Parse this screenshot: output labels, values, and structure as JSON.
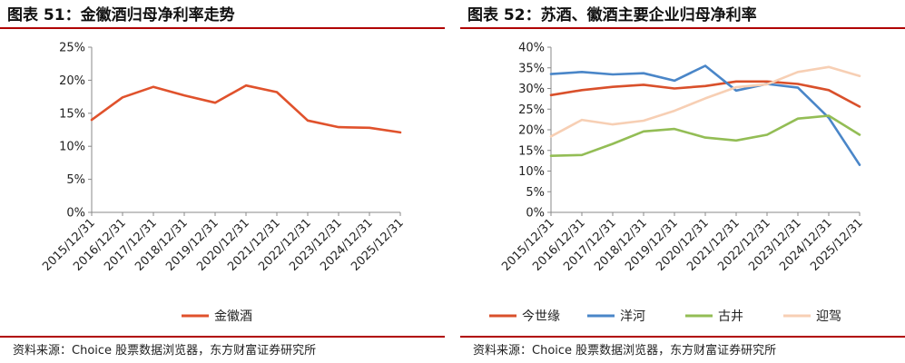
{
  "charts": [
    {
      "figure_title": "图表 51：金徽酒归母净利率走势",
      "source": "资料来源：Choice 股票数据浏览器，东方财富证券研究所",
      "legend_position": "bottom"
    },
    {
      "figure_title": "图表 52：苏酒、徽酒主要企业归母净利率",
      "source": "资料来源：Choice 股票数据浏览器，东方财富证券研究所",
      "legend_position": "bottom"
    }
  ],
  "chart_data": [
    {
      "type": "line",
      "title": "图表 51：金徽酒归母净利率走势",
      "xlabel": "",
      "ylabel": "",
      "x": [
        "2015/12/31",
        "2016/12/31",
        "2017/12/31",
        "2018/12/31",
        "2019/12/31",
        "2020/12/31",
        "2021/12/31",
        "2022/12/31",
        "2023/12/31",
        "2024/12/31",
        "2025/12/31"
      ],
      "ylim": [
        0,
        25
      ],
      "yticks": [
        "0%",
        "5%",
        "10%",
        "15%",
        "20%",
        "25%"
      ],
      "ytick_values": [
        0,
        5,
        10,
        15,
        20,
        25
      ],
      "grid": false,
      "series": [
        {
          "name": "金徽酒",
          "color": "#e0522c",
          "values": [
            14.0,
            17.4,
            19.0,
            17.7,
            16.6,
            19.2,
            18.2,
            13.9,
            12.9,
            12.8,
            12.1
          ]
        }
      ]
    },
    {
      "type": "line",
      "title": "图表 52：苏酒、徽酒主要企业归母净利率",
      "xlabel": "",
      "ylabel": "",
      "x": [
        "2015/12/31",
        "2016/12/31",
        "2017/12/31",
        "2018/12/31",
        "2019/12/31",
        "2020/12/31",
        "2021/12/31",
        "2022/12/31",
        "2023/12/31",
        "2024/12/31",
        "2025/12/31"
      ],
      "ylim": [
        0,
        40
      ],
      "yticks": [
        "0%",
        "5%",
        "10%",
        "15%",
        "20%",
        "25%",
        "30%",
        "35%",
        "40%"
      ],
      "ytick_values": [
        0,
        5,
        10,
        15,
        20,
        25,
        30,
        35,
        40
      ],
      "grid": false,
      "series": [
        {
          "name": "今世缘",
          "color": "#d9502b",
          "values": [
            28.4,
            29.6,
            30.4,
            30.9,
            30.0,
            30.6,
            31.7,
            31.7,
            31.1,
            29.6,
            25.6
          ]
        },
        {
          "name": "洋河",
          "color": "#4a86c8",
          "values": [
            33.5,
            34.0,
            33.4,
            33.7,
            31.9,
            35.5,
            29.5,
            31.1,
            30.2,
            22.9,
            11.5
          ]
        },
        {
          "name": "古井",
          "color": "#93bd55",
          "values": [
            13.7,
            13.9,
            16.6,
            19.6,
            20.2,
            18.1,
            17.4,
            18.8,
            22.7,
            23.4,
            18.8
          ]
        },
        {
          "name": "迎驾",
          "color": "#f7cfb4",
          "values": [
            18.4,
            22.4,
            21.3,
            22.2,
            24.6,
            27.6,
            30.3,
            31.0,
            34.0,
            35.2,
            33.0
          ]
        }
      ]
    }
  ]
}
